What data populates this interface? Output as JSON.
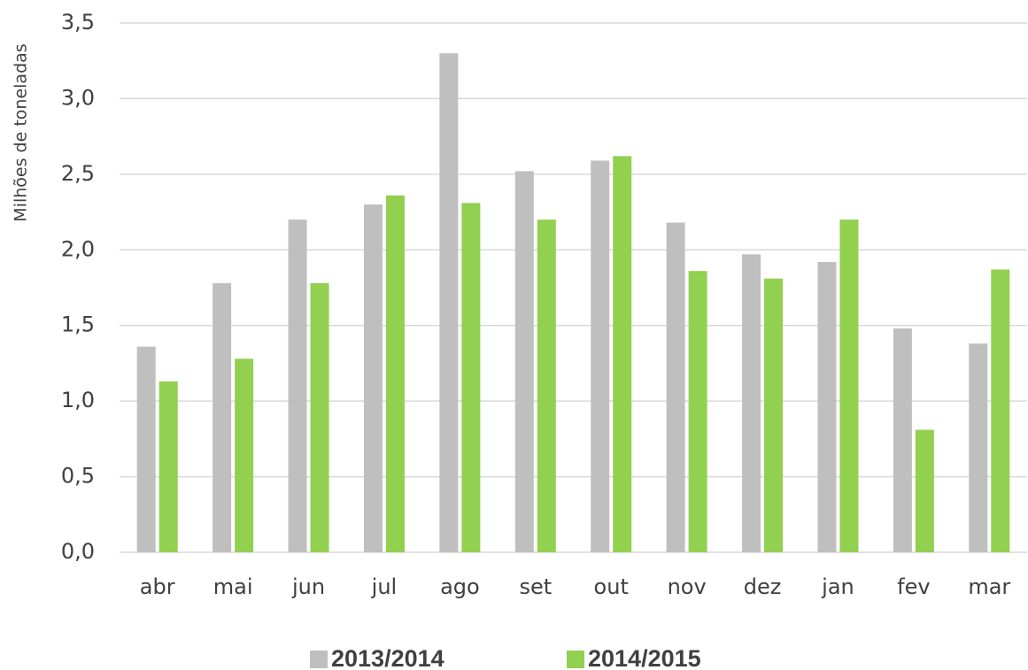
{
  "chart_data": {
    "type": "bar",
    "y_axis_label": "Milhões de toneladas",
    "categories": [
      "abr",
      "mai",
      "jun",
      "jul",
      "ago",
      "set",
      "out",
      "nov",
      "dez",
      "jan",
      "fev",
      "mar"
    ],
    "series": [
      {
        "name": "2013/2014",
        "color": "#bfbfbf",
        "values": [
          1.36,
          1.78,
          2.2,
          2.3,
          3.3,
          2.52,
          2.59,
          2.18,
          1.97,
          1.92,
          1.48,
          1.38
        ]
      },
      {
        "name": "2014/2015",
        "color": "#92d050",
        "values": [
          1.13,
          1.28,
          1.78,
          2.36,
          2.31,
          2.2,
          2.62,
          1.86,
          1.81,
          2.2,
          0.81,
          1.87
        ]
      }
    ],
    "ylim": [
      0,
      3.5
    ],
    "yticks": [
      {
        "value": 0,
        "label": "0,0"
      },
      {
        "value": 0.5,
        "label": "0,5"
      },
      {
        "value": 1,
        "label": "1,0"
      },
      {
        "value": 1.5,
        "label": "1,5"
      },
      {
        "value": 2,
        "label": "2,0"
      },
      {
        "value": 2.5,
        "label": "2,5"
      },
      {
        "value": 3,
        "label": "3,0"
      },
      {
        "value": 3.5,
        "label": "3,5"
      }
    ],
    "grid": true,
    "legend": "bottom"
  }
}
